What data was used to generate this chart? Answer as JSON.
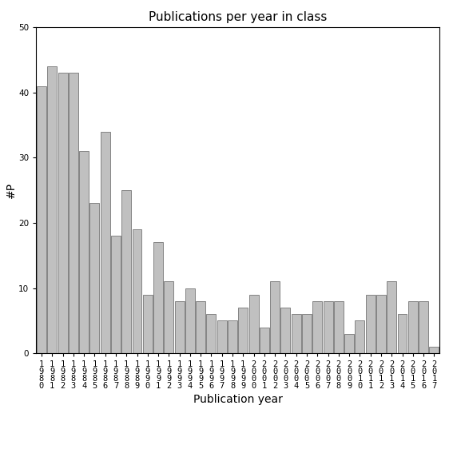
{
  "title": "Publications per year in class",
  "xlabel": "Publication year",
  "ylabel": "#P",
  "years": [
    1980,
    1981,
    1982,
    1983,
    1984,
    1985,
    1986,
    1987,
    1988,
    1989,
    1990,
    1991,
    1992,
    1993,
    1994,
    1995,
    1996,
    1997,
    1998,
    1999,
    2000,
    2001,
    2002,
    2003,
    2004,
    2005,
    2006,
    2007,
    2008,
    2009,
    2010,
    2011,
    2012,
    2013,
    2014,
    2015,
    2016,
    2017
  ],
  "values": [
    41,
    44,
    43,
    43,
    31,
    23,
    34,
    18,
    25,
    19,
    9,
    17,
    11,
    8,
    10,
    8,
    6,
    5,
    5,
    7,
    9,
    4,
    11,
    7,
    6,
    6,
    8,
    8,
    8,
    3,
    5,
    9,
    9,
    11,
    6,
    8,
    8,
    1
  ],
  "ylim": [
    0,
    50
  ],
  "bar_color": "#c0c0c0",
  "bar_edge_color": "#606060",
  "title_fontsize": 11,
  "axis_label_fontsize": 10,
  "tick_fontsize": 7.5,
  "yticks": [
    0,
    10,
    20,
    30,
    40,
    50
  ]
}
